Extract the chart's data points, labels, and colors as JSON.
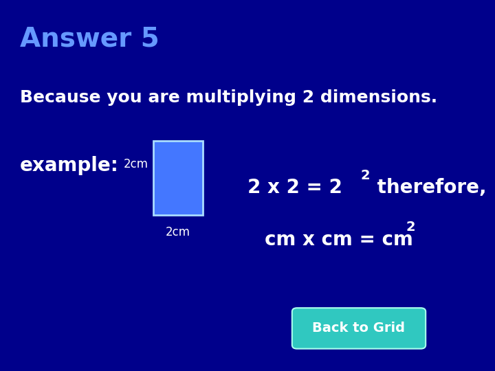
{
  "background_color": "#00008B",
  "title": "Answer 5",
  "title_color": "#6699FF",
  "title_fontsize": 28,
  "body_text": "Because you are multiplying 2 dimensions.",
  "body_color": "#FFFFFF",
  "body_fontsize": 18,
  "example_label": "example:",
  "example_color": "#FFFFFF",
  "example_fontsize": 20,
  "dim_label": "2cm",
  "dim_color": "#FFFFFF",
  "dim_fontsize": 12,
  "rect_color": "#4477FF",
  "rect_edge_color": "#AADDFF",
  "math_color": "#FFFFFF",
  "math_fontsize": 20,
  "button_text": "Back to Grid",
  "button_bg": "#30C8C0",
  "button_text_color": "#FFFFFF",
  "button_fontsize": 14
}
